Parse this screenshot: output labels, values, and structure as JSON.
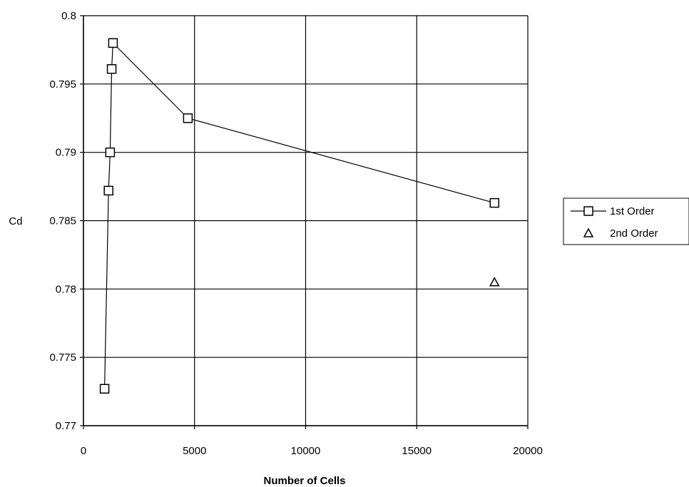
{
  "chart_data": {
    "type": "scatter",
    "title": "",
    "xlabel": "Number of Cells",
    "ylabel": "Cd",
    "xlim": [
      0,
      20000
    ],
    "ylim": [
      0.77,
      0.8
    ],
    "x_ticks": [
      0,
      5000,
      10000,
      15000,
      20000
    ],
    "x_tick_labels": [
      "0",
      "5000",
      "10000",
      "15000",
      "20000"
    ],
    "y_ticks": [
      0.77,
      0.775,
      0.78,
      0.785,
      0.79,
      0.795,
      0.8
    ],
    "y_tick_labels": [
      "0.77",
      "0.775",
      "0.78",
      "0.785",
      "0.79",
      "0.795",
      "0.8"
    ],
    "grid": true,
    "legend_position": "right",
    "series": [
      {
        "name": "1st Order",
        "marker": "square",
        "connected": true,
        "color": "#000000",
        "points": [
          {
            "x": 950,
            "y": 0.7727
          },
          {
            "x": 1130,
            "y": 0.7872
          },
          {
            "x": 1200,
            "y": 0.79
          },
          {
            "x": 1270,
            "y": 0.7961
          },
          {
            "x": 1330,
            "y": 0.798
          },
          {
            "x": 4700,
            "y": 0.7925
          },
          {
            "x": 18500,
            "y": 0.7863
          }
        ]
      },
      {
        "name": "2nd Order",
        "marker": "triangle",
        "connected": false,
        "color": "#000000",
        "points": [
          {
            "x": 18500,
            "y": 0.7805
          }
        ]
      }
    ]
  }
}
